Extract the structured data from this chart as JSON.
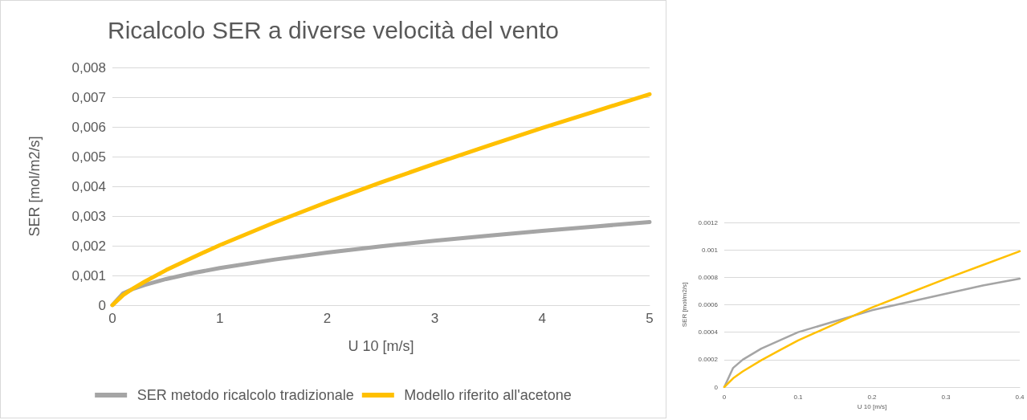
{
  "chart_data": [
    {
      "type": "line",
      "title": "Ricalcolo SER a diverse velocità del vento",
      "xlabel": "U 10 [m/s]",
      "ylabel": "SER [mol/m2/s]",
      "x": [
        0,
        0.1,
        0.2,
        0.3,
        0.5,
        0.75,
        1,
        1.5,
        2,
        2.5,
        3,
        3.5,
        4,
        4.5,
        5
      ],
      "series": [
        {
          "name": "SER metodo ricalcolo tradizionale",
          "color": "#a5a5a5",
          "values": [
            0,
            0.0004,
            0.00056,
            0.00068,
            0.00088,
            0.00108,
            0.00125,
            0.00153,
            0.00177,
            0.00198,
            0.00217,
            0.00234,
            0.0025,
            0.00265,
            0.0028
          ]
        },
        {
          "name": "Modello riferito all'acetone",
          "color": "#ffc000",
          "values": [
            0,
            0.00034,
            0.00058,
            0.00079,
            0.00118,
            0.00161,
            0.00202,
            0.00277,
            0.00347,
            0.00413,
            0.00476,
            0.00537,
            0.00596,
            0.00653,
            0.0071
          ]
        }
      ],
      "xlim": [
        0,
        5
      ],
      "xticks": [
        0,
        1,
        2,
        3,
        4,
        5
      ],
      "ylim": [
        0,
        0.008
      ],
      "yticks": [
        0,
        {
          "value": 0.001,
          "label": "0,001"
        },
        {
          "value": 0.002,
          "label": "0,002"
        },
        {
          "value": 0.003,
          "label": "0,003"
        },
        {
          "value": 0.004,
          "label": "0,004"
        },
        {
          "value": 0.005,
          "label": "0,005"
        },
        {
          "value": 0.006,
          "label": "0,006"
        },
        {
          "value": 0.007,
          "label": "0,007"
        },
        {
          "value": 0.008,
          "label": "0,008"
        }
      ],
      "grid": "y",
      "legend": "bottom",
      "marker": "none",
      "line_style": "solid"
    },
    {
      "type": "line",
      "xlabel": "U 10 [m/s]",
      "ylabel": "SER [mol/m2/s]",
      "x": [
        0,
        0.012,
        0.025,
        0.05,
        0.075,
        0.1,
        0.15,
        0.2,
        0.25,
        0.3,
        0.35,
        0.4
      ],
      "series": [
        {
          "color": "#a5a5a5",
          "values": [
            0,
            0.00014,
            0.0002,
            0.00028,
            0.00034,
            0.0004,
            0.00048,
            0.00056,
            0.00062,
            0.00068,
            0.00074,
            0.00079
          ]
        },
        {
          "color": "#ffc000",
          "values": [
            0,
            6.4e-05,
            0.000114,
            0.000195,
            0.000268,
            0.00034,
            0.00046,
            0.00058,
            0.000685,
            0.00079,
            0.00089,
            0.00099
          ]
        }
      ],
      "xlim": [
        0,
        0.4
      ],
      "xticks": [
        0,
        0.1,
        0.2,
        0.3,
        0.4
      ],
      "ylim": [
        0,
        0.0012
      ],
      "yticks": [
        0,
        0.0002,
        0.0004,
        0.0006,
        0.0008,
        0.001,
        0.0012
      ],
      "grid": "y",
      "marker": "none",
      "line_style": "solid"
    }
  ]
}
